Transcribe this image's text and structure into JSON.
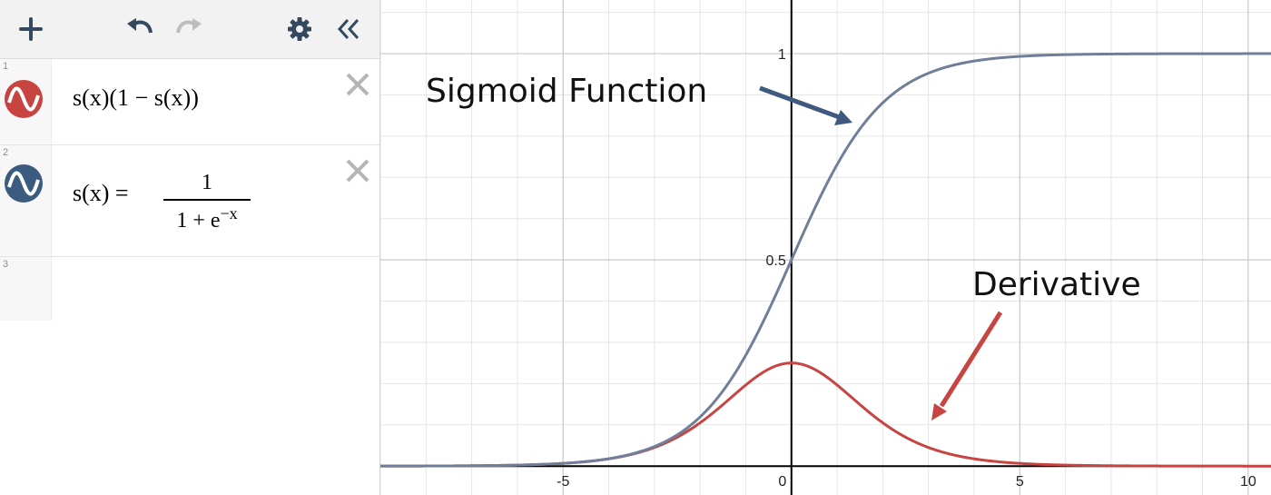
{
  "toolbar": {
    "buttons": [
      "add-icon",
      "undo-icon",
      "redo-icon",
      "settings-icon",
      "collapse-icon"
    ]
  },
  "expressions": [
    {
      "number": "1",
      "color": "#c74440",
      "latex_text": "s(x)(1 − s(x))"
    },
    {
      "number": "2",
      "color": "#2d70b3",
      "lhs": "s(x) =",
      "numerator": "1",
      "denominator_base": "1 + e",
      "denominator_exp": "−x"
    },
    {
      "number": "3"
    }
  ],
  "graph": {
    "annotations": {
      "sigmoid_label": "Sigmoid Function",
      "derivative_label": "Derivative"
    },
    "colors": {
      "sigmoid": "#6f7f99",
      "derivative": "#c74440",
      "sigmoid_arrow": "#3e5a80",
      "derivative_arrow": "#c74440"
    }
  },
  "chart_data": {
    "type": "line",
    "title": "",
    "xlabel": "",
    "ylabel": "",
    "xlim": [
      -9,
      10.5
    ],
    "ylim": [
      -0.07,
      1.13
    ],
    "x_ticks": [
      "-5",
      "0",
      "5",
      "10"
    ],
    "y_ticks": [
      "0.5",
      "1"
    ],
    "grid": true,
    "series": [
      {
        "name": "s(x) = 1 / (1 + e^−x)",
        "function": "sigmoid",
        "sample_points": [
          [
            -5,
            0.0067
          ],
          [
            -2,
            0.119
          ],
          [
            0,
            0.5
          ],
          [
            2,
            0.881
          ],
          [
            5,
            0.9933
          ],
          [
            10,
            1.0
          ]
        ]
      },
      {
        "name": "s(x)(1 − s(x))",
        "function": "sigmoid_derivative",
        "sample_points": [
          [
            -5,
            0.0066
          ],
          [
            -2,
            0.105
          ],
          [
            0,
            0.25
          ],
          [
            2,
            0.105
          ],
          [
            5,
            0.0066
          ],
          [
            10,
            5e-05
          ]
        ]
      }
    ]
  }
}
